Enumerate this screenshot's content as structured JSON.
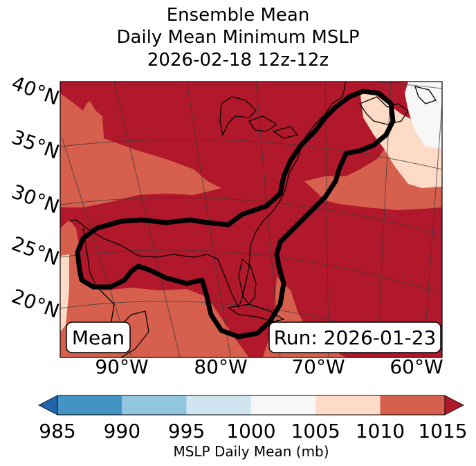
{
  "title": {
    "line1": "Ensemble Mean",
    "line2": "Daily Mean Minimum MSLP",
    "line3": "2026-02-18 12z-12z"
  },
  "map": {
    "lat_labels": [
      "40°N",
      "35°N",
      "30°N",
      "25°N",
      "20°N"
    ],
    "lon_labels": [
      "90°W",
      "80°W",
      "70°W",
      "60°W"
    ],
    "mean_box": "Mean",
    "run_box": "Run: 2026-01-23",
    "colors": {
      "c1010_1015": "#b2182b",
      "c1005_1010": "#d6604d",
      "c1000_1005": "#fddbc7",
      "c995_1000": "#f7f7f7",
      "contour": "#000000"
    }
  },
  "colorbar": {
    "ticks": [
      "985",
      "990",
      "995",
      "1000",
      "1005",
      "1010",
      "1015"
    ],
    "label": "MSLP Daily Mean (mb)",
    "colors": [
      "#2166ac",
      "#4393c3",
      "#92c5de",
      "#d1e5f0",
      "#f7f7f7",
      "#fddbc7",
      "#d6604d",
      "#b2182b"
    ]
  }
}
